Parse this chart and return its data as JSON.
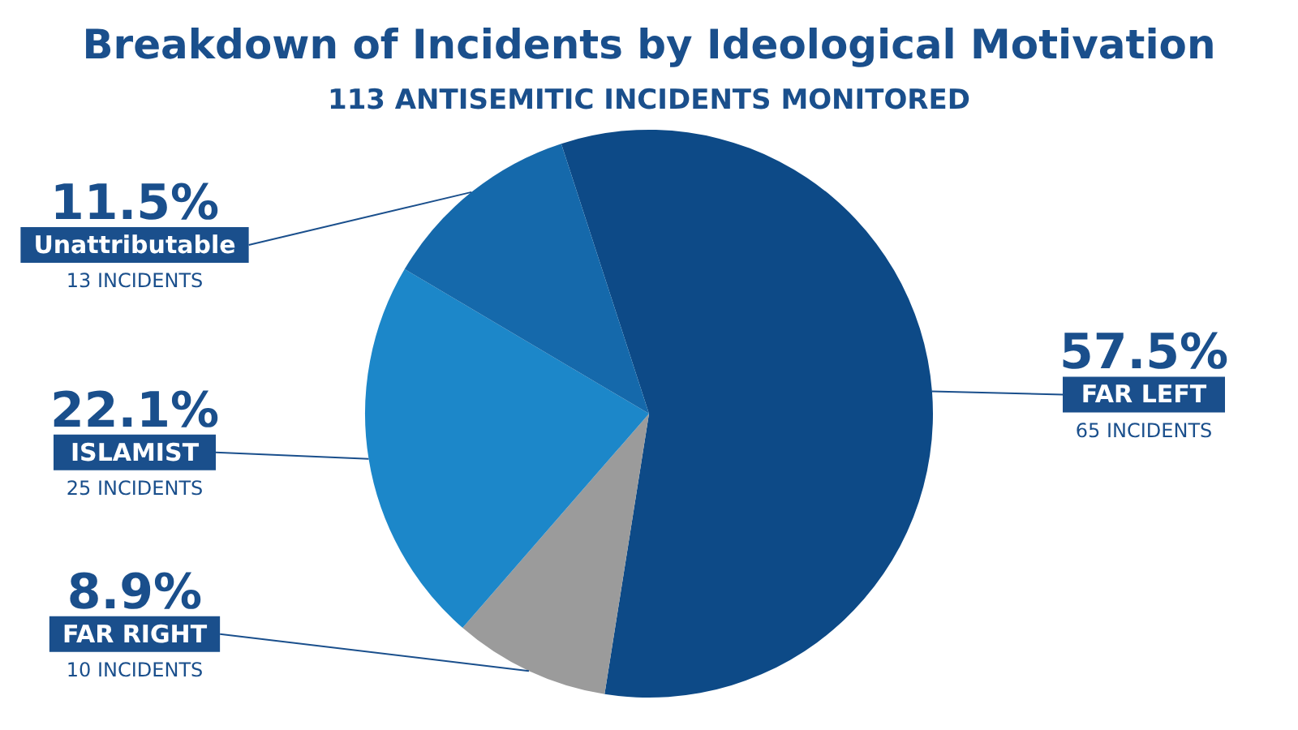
{
  "chart_data": {
    "type": "pie",
    "title": "Breakdown of Incidents by Ideological Motivation",
    "subtitle": "113 ANTISEMITIC INCIDENTS MONITORED",
    "categories": [
      "FAR LEFT",
      "FAR RIGHT",
      "ISLAMIST",
      "Unattributable"
    ],
    "values": [
      57.5,
      8.9,
      22.1,
      11.5
    ],
    "colors": [
      "#0d4a87",
      "#9b9b9b",
      "#1c87c9",
      "#1569ab"
    ],
    "value_labels": [
      "57.5%",
      "8.9%",
      "22.1%",
      "11.5%"
    ],
    "annotations": [
      "65 INCIDENTS",
      "10 INCIDENTS",
      "25 INCIDENTS",
      "13 INCIDENTS"
    ],
    "legend": false
  }
}
